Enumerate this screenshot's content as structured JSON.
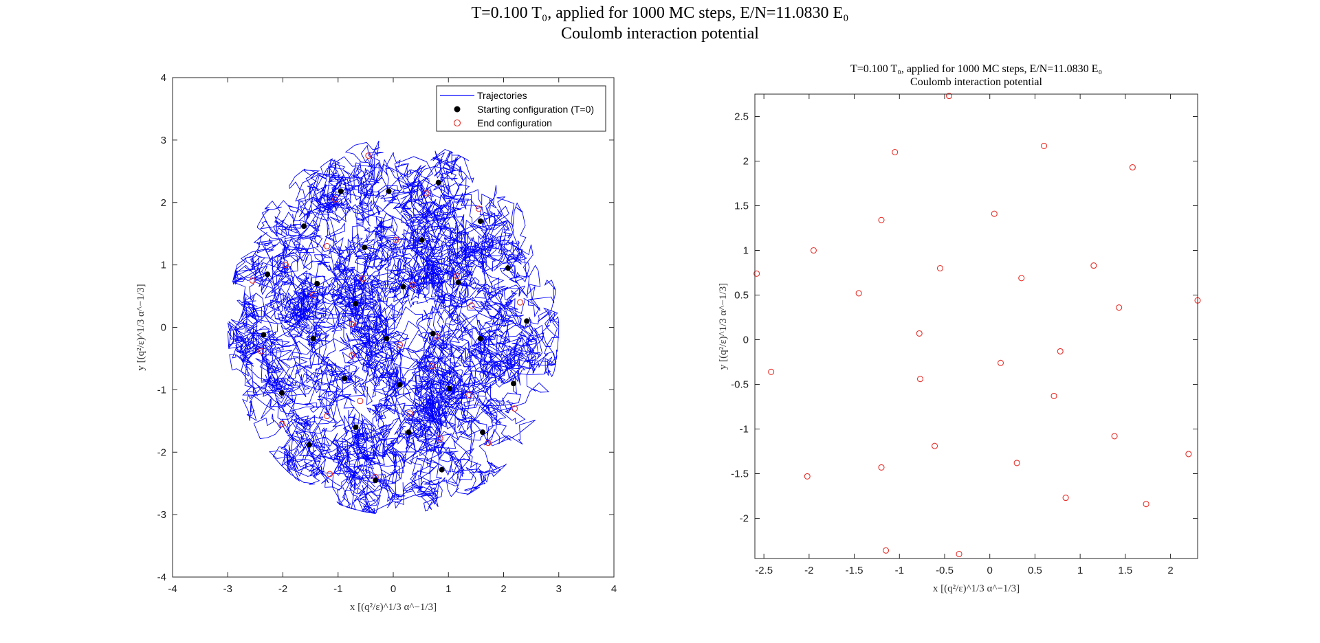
{
  "figure": {
    "title_line1": "T=0.100 T₀, applied for 1000 MC steps, E/N=11.0830 E₀",
    "title_line2": "Coulomb interaction potential"
  },
  "chart_data": [
    {
      "type": "scatter",
      "title_line1": "",
      "title_line2": "",
      "xlabel": "x [(q²/ε)^1/3 α^−1/3]",
      "ylabel": "y [(q²/ε)^1/3 α^−1/3]",
      "xlim": [
        -4,
        4
      ],
      "ylim": [
        -4,
        4
      ],
      "xticks": [
        -4,
        -3,
        -2,
        -1,
        0,
        1,
        2,
        3,
        4
      ],
      "yticks": [
        -4,
        -3,
        -2,
        -1,
        0,
        1,
        2,
        3,
        4
      ],
      "legend_position": "top-right",
      "series": [
        {
          "name": "Trajectories",
          "kind": "line",
          "color": "#0000ff",
          "radius_extent": 3.0
        },
        {
          "name": "Starting configuration (T=0)",
          "kind": "marker-filled",
          "color": "#000000",
          "points": [
            [
              -0.95,
              2.18
            ],
            [
              -0.08,
              2.18
            ],
            [
              0.82,
              2.32
            ],
            [
              -1.62,
              1.62
            ],
            [
              1.58,
              1.7
            ],
            [
              -0.52,
              1.28
            ],
            [
              0.52,
              1.4
            ],
            [
              -2.28,
              0.85
            ],
            [
              -1.38,
              0.7
            ],
            [
              0.18,
              0.65
            ],
            [
              1.18,
              0.72
            ],
            [
              2.08,
              0.95
            ],
            [
              -0.68,
              0.38
            ],
            [
              -2.35,
              -0.12
            ],
            [
              -1.45,
              -0.18
            ],
            [
              -0.12,
              -0.18
            ],
            [
              0.72,
              -0.1
            ],
            [
              1.58,
              -0.18
            ],
            [
              2.42,
              0.1
            ],
            [
              -0.88,
              -0.82
            ],
            [
              0.12,
              -0.92
            ],
            [
              1.02,
              -0.98
            ],
            [
              2.18,
              -0.9
            ],
            [
              -2.02,
              -1.05
            ],
            [
              -0.68,
              -1.6
            ],
            [
              0.28,
              -1.68
            ],
            [
              1.62,
              -1.68
            ],
            [
              -1.52,
              -1.88
            ],
            [
              -0.32,
              -2.45
            ],
            [
              0.88,
              -2.28
            ]
          ]
        },
        {
          "name": "End configuration",
          "kind": "marker-open",
          "color": "#e8302a",
          "points": [
            [
              -1.05,
              2.05
            ],
            [
              0.6,
              2.15
            ],
            [
              -0.45,
              2.75
            ],
            [
              1.55,
              1.9
            ],
            [
              -1.2,
              1.3
            ],
            [
              0.05,
              1.4
            ],
            [
              -1.95,
              1.0
            ],
            [
              -0.55,
              0.78
            ],
            [
              0.35,
              0.68
            ],
            [
              1.15,
              0.82
            ],
            [
              -2.55,
              0.75
            ],
            [
              -1.45,
              0.52
            ],
            [
              1.42,
              0.35
            ],
            [
              2.3,
              0.4
            ],
            [
              -0.75,
              0.05
            ],
            [
              0.78,
              -0.15
            ],
            [
              0.12,
              -0.28
            ],
            [
              -2.4,
              -0.38
            ],
            [
              -0.75,
              -0.45
            ],
            [
              0.7,
              -0.62
            ],
            [
              1.38,
              -1.08
            ],
            [
              2.2,
              -1.3
            ],
            [
              -0.6,
              -1.18
            ],
            [
              0.3,
              -1.38
            ],
            [
              -1.2,
              -1.42
            ],
            [
              -2.02,
              -1.55
            ],
            [
              0.85,
              -1.78
            ],
            [
              1.72,
              -1.85
            ],
            [
              -1.15,
              -2.35
            ],
            [
              -0.32,
              -2.4
            ]
          ]
        }
      ]
    },
    {
      "type": "scatter",
      "title_line1": "T=0.100 T₀, applied for 1000 MC steps, E/N=11.0830 E₀",
      "title_line2": "Coulomb interaction potential",
      "xlabel": "x [(q²/ε)^1/3 α^−1/3]",
      "ylabel": "y [(q²/ε)^1/3 α^−1/3]",
      "xlim": [
        -2.6,
        2.3
      ],
      "ylim": [
        -2.45,
        2.75
      ],
      "xticks": [
        -2.5,
        -2,
        -1.5,
        -1,
        -0.5,
        0,
        0.5,
        1,
        1.5,
        2
      ],
      "yticks": [
        -2,
        -1.5,
        -1,
        -0.5,
        0,
        0.5,
        1,
        1.5,
        2,
        2.5
      ],
      "series": [
        {
          "name": "End configuration",
          "kind": "marker-open",
          "color": "#e8302a",
          "points": [
            [
              -1.05,
              2.1
            ],
            [
              0.6,
              2.17
            ],
            [
              -0.45,
              2.73
            ],
            [
              1.58,
              1.93
            ],
            [
              -1.2,
              1.34
            ],
            [
              0.05,
              1.41
            ],
            [
              -1.95,
              1.0
            ],
            [
              -0.55,
              0.8
            ],
            [
              0.35,
              0.69
            ],
            [
              1.15,
              0.83
            ],
            [
              -2.58,
              0.74
            ],
            [
              -1.45,
              0.52
            ],
            [
              1.43,
              0.36
            ],
            [
              2.3,
              0.44
            ],
            [
              -0.78,
              0.07
            ],
            [
              0.78,
              -0.13
            ],
            [
              0.12,
              -0.26
            ],
            [
              -2.42,
              -0.36
            ],
            [
              -0.77,
              -0.44
            ],
            [
              0.71,
              -0.63
            ],
            [
              1.38,
              -1.08
            ],
            [
              2.2,
              -1.28
            ],
            [
              -0.61,
              -1.19
            ],
            [
              0.3,
              -1.38
            ],
            [
              -1.2,
              -1.43
            ],
            [
              -2.02,
              -1.53
            ],
            [
              0.84,
              -1.77
            ],
            [
              1.73,
              -1.84
            ],
            [
              -1.15,
              -2.36
            ],
            [
              -0.34,
              -2.4
            ]
          ]
        }
      ]
    }
  ]
}
